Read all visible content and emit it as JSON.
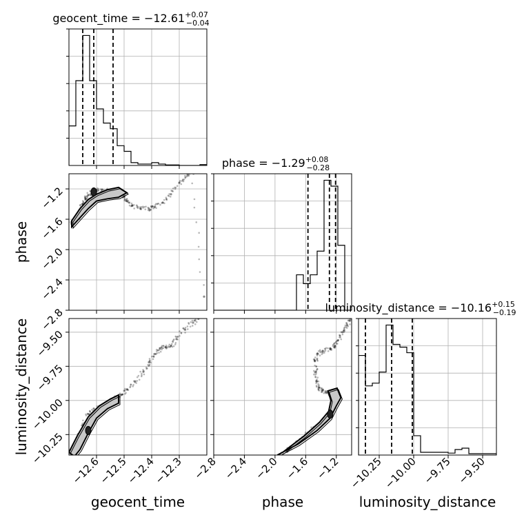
{
  "chart_data": {
    "type": "corner",
    "parameters": [
      "geocent_time",
      "phase",
      "luminosity_distance"
    ],
    "titles": {
      "geocent_time": {
        "label": "geocent_time = ",
        "median": "−12.61",
        "upper": "+0.07",
        "lower": "−0.04"
      },
      "phase": {
        "label": "phase = ",
        "median": "−1.29",
        "upper": "+0.08",
        "lower": "−0.28"
      },
      "luminosity_distance": {
        "label": "luminosity_distance = ",
        "median": "−10.16",
        "upper": "+0.15",
        "lower": "−0.19"
      }
    },
    "axis_labels": {
      "x": [
        "geocent_time",
        "phase",
        "luminosity_distance"
      ],
      "y": [
        "phase",
        "luminosity_distance"
      ]
    },
    "ranges": {
      "geocent_time": [
        -12.7,
        -12.2
      ],
      "phase": [
        -2.8,
        -1.0
      ],
      "luminosity_distance": [
        -10.4,
        -9.4
      ]
    },
    "ticks": {
      "geocent_time": [
        -12.6,
        -12.5,
        -12.4,
        -12.3
      ],
      "phase": [
        -2.8,
        -2.4,
        -2.0,
        -1.6,
        -1.2
      ],
      "luminosity_distance": [
        -10.25,
        -10.0,
        -9.75,
        -9.5
      ]
    },
    "tick_labels": {
      "geocent_time": [
        "−12.6",
        "−12.5",
        "−12.4",
        "−12.3"
      ],
      "phase": [
        "−2.8",
        "−2.4",
        "−2.0",
        "−1.6",
        "−1.2"
      ],
      "luminosity_distance": [
        "−10.25",
        "−10.00",
        "−9.75",
        "−9.50"
      ]
    },
    "quantile_lines": {
      "geocent_time": [
        -12.65,
        -12.61,
        -12.54
      ],
      "phase": [
        -1.57,
        -1.29,
        -1.21
      ],
      "luminosity_distance": [
        -10.35,
        -10.16,
        -10.01
      ]
    },
    "histograms": {
      "geocent_time": {
        "edges_start": -12.7,
        "bin_width": 0.025,
        "counts": [
          14,
          30,
          46,
          30,
          20,
          15,
          13,
          7,
          5,
          1,
          0.5,
          0.5,
          1,
          0.5,
          0.2,
          0.2,
          0,
          0,
          0,
          0.3
        ]
      },
      "phase": {
        "edges_start": -2.8,
        "bin_width": 0.09,
        "counts": [
          0,
          0,
          0,
          0,
          0,
          0,
          0,
          0,
          0,
          0,
          0,
          0,
          12,
          9,
          12,
          20,
          44,
          42,
          22,
          0
        ]
      },
      "luminosity_distance": {
        "edges_start": -10.4,
        "bin_width": 0.05,
        "counts": [
          36,
          25,
          26,
          30,
          47,
          40,
          39,
          37,
          7,
          1,
          1,
          1,
          1,
          0.7,
          2,
          2.5,
          0.5,
          0.5,
          0.5,
          0.5
        ]
      }
    },
    "samples": {
      "phase_vs_geocent_time": [
        [
          -12.69,
          -1.66
        ],
        [
          -12.67,
          -1.58
        ],
        [
          -12.66,
          -1.48
        ],
        [
          -12.65,
          -1.4
        ],
        [
          -12.64,
          -1.33
        ],
        [
          -12.63,
          -1.28
        ],
        [
          -12.61,
          -1.24
        ],
        [
          -12.6,
          -1.22
        ],
        [
          -12.58,
          -1.21
        ],
        [
          -12.56,
          -1.22
        ],
        [
          -12.54,
          -1.23
        ],
        [
          -12.52,
          -1.24
        ],
        [
          -12.51,
          -1.26
        ],
        [
          -12.5,
          -1.3
        ],
        [
          -12.49,
          -1.36
        ],
        [
          -12.47,
          -1.42
        ],
        [
          -12.44,
          -1.46
        ],
        [
          -12.41,
          -1.46
        ],
        [
          -12.39,
          -1.44
        ],
        [
          -12.36,
          -1.38
        ],
        [
          -12.33,
          -1.27
        ],
        [
          -12.3,
          -1.12
        ],
        [
          -12.27,
          -1.02
        ],
        [
          -12.25,
          -0.98
        ],
        [
          -12.21,
          -2.62
        ]
      ],
      "luminosity_distance_vs_geocent_time": [
        [
          -12.7,
          -10.41
        ],
        [
          -12.68,
          -10.37
        ],
        [
          -12.67,
          -10.28
        ],
        [
          -12.65,
          -10.18
        ],
        [
          -12.63,
          -10.1
        ],
        [
          -12.61,
          -10.06
        ],
        [
          -12.58,
          -10.04
        ],
        [
          -12.55,
          -10.01
        ],
        [
          -12.53,
          -9.98
        ],
        [
          -12.51,
          -9.96
        ],
        [
          -12.49,
          -9.92
        ],
        [
          -12.46,
          -9.86
        ],
        [
          -12.43,
          -9.79
        ],
        [
          -12.41,
          -9.72
        ],
        [
          -12.39,
          -9.66
        ],
        [
          -12.37,
          -9.62
        ],
        [
          -12.35,
          -9.61
        ],
        [
          -12.33,
          -9.6
        ],
        [
          -12.31,
          -9.55
        ],
        [
          -12.28,
          -9.48
        ],
        [
          -12.25,
          -9.43
        ],
        [
          -12.23,
          -9.4
        ]
      ],
      "luminosity_distance_vs_phase": [
        [
          -1.95,
          -10.41
        ],
        [
          -1.82,
          -10.35
        ],
        [
          -1.72,
          -10.31
        ],
        [
          -1.6,
          -10.26
        ],
        [
          -1.5,
          -10.21
        ],
        [
          -1.38,
          -10.16
        ],
        [
          -1.28,
          -10.09
        ],
        [
          -1.21,
          -10.02
        ],
        [
          -1.18,
          -9.98
        ],
        [
          -1.26,
          -9.95
        ],
        [
          -1.33,
          -9.94
        ],
        [
          -1.38,
          -9.93
        ],
        [
          -1.43,
          -9.91
        ],
        [
          -1.46,
          -9.86
        ],
        [
          -1.47,
          -9.79
        ],
        [
          -1.48,
          -9.71
        ],
        [
          -1.45,
          -9.66
        ],
        [
          -1.38,
          -9.64
        ],
        [
          -1.28,
          -9.62
        ],
        [
          -1.22,
          -9.6
        ],
        [
          -1.18,
          -9.56
        ],
        [
          -1.12,
          -9.5
        ],
        [
          -1.06,
          -9.45
        ],
        [
          -1.02,
          -9.41
        ]
      ]
    },
    "contours": {
      "phase_vs_geocent_time": {
        "center": [
          -12.61,
          -1.24
        ],
        "path": [
          [
            -12.69,
            -1.62
          ],
          [
            -12.66,
            -1.46
          ],
          [
            -12.63,
            -1.34
          ],
          [
            -12.6,
            -1.27
          ],
          [
            -12.56,
            -1.21
          ],
          [
            -12.52,
            -1.18
          ],
          [
            -12.49,
            -1.25
          ],
          [
            -12.52,
            -1.31
          ],
          [
            -12.56,
            -1.33
          ],
          [
            -12.6,
            -1.36
          ],
          [
            -12.63,
            -1.46
          ],
          [
            -12.66,
            -1.58
          ],
          [
            -12.69,
            -1.7
          ]
        ]
      },
      "luminosity_distance_vs_geocent_time": {
        "center": [
          -12.63,
          -10.22
        ],
        "path": [
          [
            -12.7,
            -10.38
          ],
          [
            -12.67,
            -10.26
          ],
          [
            -12.63,
            -10.12
          ],
          [
            -12.59,
            -10.04
          ],
          [
            -12.55,
            -9.99
          ],
          [
            -12.52,
            -9.96
          ],
          [
            -12.52,
            -10.02
          ],
          [
            -12.56,
            -10.06
          ],
          [
            -12.6,
            -10.13
          ],
          [
            -12.63,
            -10.24
          ],
          [
            -12.66,
            -10.36
          ],
          [
            -12.68,
            -10.41
          ]
        ]
      },
      "luminosity_distance_vs_phase": {
        "center": [
          -1.28,
          -10.1
        ],
        "path": [
          [
            -1.97,
            -10.4
          ],
          [
            -1.7,
            -10.32
          ],
          [
            -1.45,
            -10.22
          ],
          [
            -1.28,
            -10.13
          ],
          [
            -1.2,
            -10.04
          ],
          [
            -1.14,
            -9.98
          ],
          [
            -1.19,
            -9.91
          ],
          [
            -1.31,
            -9.93
          ],
          [
            -1.27,
            -10.0
          ],
          [
            -1.3,
            -10.08
          ],
          [
            -1.42,
            -10.16
          ],
          [
            -1.62,
            -10.26
          ],
          [
            -1.9,
            -10.38
          ]
        ]
      }
    },
    "grid": true
  }
}
